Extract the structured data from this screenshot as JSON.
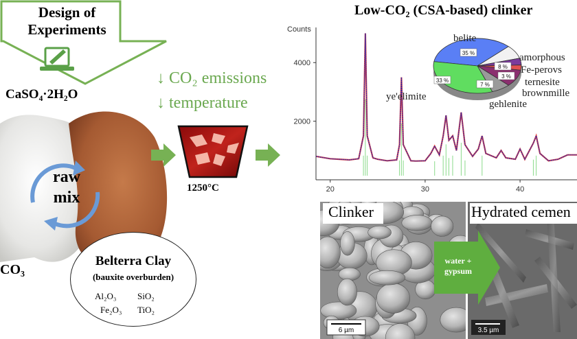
{
  "design": {
    "title_line1": "Design of",
    "title_line2": "Experiments"
  },
  "gypsum_label": "CaSO₄·2H₂O",
  "caco3_label": "CO₃",
  "raw_mix": {
    "line1": "raw",
    "line2": "mix"
  },
  "clay": {
    "title": "Belterra Clay",
    "subtitle": "(bauxite overburden)",
    "oxides": [
      "Al₂O₃",
      "SiO₂",
      "Fe₂O₃",
      "TiO₂"
    ]
  },
  "benefits": {
    "line1": "↓ CO₂ emissions",
    "line2": "↓ temperature"
  },
  "kiln_temp": "1250°C",
  "clinker_title": "Low-CO₂ (CSA-based) clinker",
  "xrd": {
    "y_axis_title": "Counts"
  },
  "chart_data": {
    "type": "line",
    "title": "",
    "xlabel": "",
    "ylabel": "Counts",
    "xlim": [
      18.5,
      46
    ],
    "ylim": [
      0,
      5200
    ],
    "x_ticks": [
      20,
      30,
      40
    ],
    "y_ticks": [
      2000,
      4000
    ],
    "series": [
      {
        "values": [
          [
            18.5,
            800
          ],
          [
            20,
            720
          ],
          [
            21,
            700
          ],
          [
            22,
            680
          ],
          [
            23,
            720
          ],
          [
            23.5,
            1500
          ],
          [
            23.7,
            5000
          ],
          [
            23.9,
            1500
          ],
          [
            24.5,
            750
          ],
          [
            25,
            700
          ],
          [
            26,
            650
          ],
          [
            27,
            680
          ],
          [
            27.3,
            1200
          ],
          [
            27.5,
            3500
          ],
          [
            27.7,
            1200
          ],
          [
            28.5,
            650
          ],
          [
            29,
            640
          ],
          [
            30,
            650
          ],
          [
            30.6,
            900
          ],
          [
            31,
            1150
          ],
          [
            31.5,
            850
          ],
          [
            31.9,
            1500
          ],
          [
            32.2,
            2200
          ],
          [
            32.5,
            1350
          ],
          [
            32.9,
            1500
          ],
          [
            33.3,
            1000
          ],
          [
            33.8,
            2300
          ],
          [
            34.2,
            1200
          ],
          [
            35,
            800
          ],
          [
            35.6,
            1050
          ],
          [
            36,
            1500
          ],
          [
            36.4,
            900
          ],
          [
            37.5,
            750
          ],
          [
            38,
            1000
          ],
          [
            38.5,
            750
          ],
          [
            39.5,
            700
          ],
          [
            40,
            1050
          ],
          [
            40.5,
            700
          ],
          [
            41.4,
            1250
          ],
          [
            41.7,
            1500
          ],
          [
            42.1,
            900
          ],
          [
            43,
            650
          ],
          [
            44,
            700
          ],
          [
            45,
            850
          ],
          [
            46,
            850
          ]
        ]
      }
    ]
  },
  "pie": {
    "slices": [
      {
        "label": "belite",
        "value": 35,
        "color": "#5a7ff5"
      },
      {
        "label": "amorphous",
        "value": 8,
        "color": "#f2f2f2"
      },
      {
        "label": "Fe-perovskite",
        "value": 4,
        "color": "#7a3b9c"
      },
      {
        "label": "ternesite",
        "value": 3,
        "color": "#e05050"
      },
      {
        "label": "brownmillerite",
        "value": 10,
        "color": "#8b2f6f"
      },
      {
        "label": "gehlenite",
        "value": 7,
        "color": "#9a9a9a"
      },
      {
        "label": "ye'elimite",
        "value": 33,
        "color": "#60dd60"
      }
    ],
    "labels_visible": [
      "belite",
      "amorphous",
      "Fe-perovs",
      "ternesite",
      "brownmille",
      "gehlenite",
      "ye'elimite"
    ],
    "pct_labels": [
      "35 %",
      "8 %",
      "3 %",
      "7 %",
      "33 %"
    ]
  },
  "sem": {
    "left_label": "Clinker",
    "right_label": "Hydrated cemen",
    "arrow_text_line1": "water +",
    "arrow_text_line2": "gypsum",
    "scale_left": "6 µm",
    "scale_right": "3.5 µm"
  }
}
